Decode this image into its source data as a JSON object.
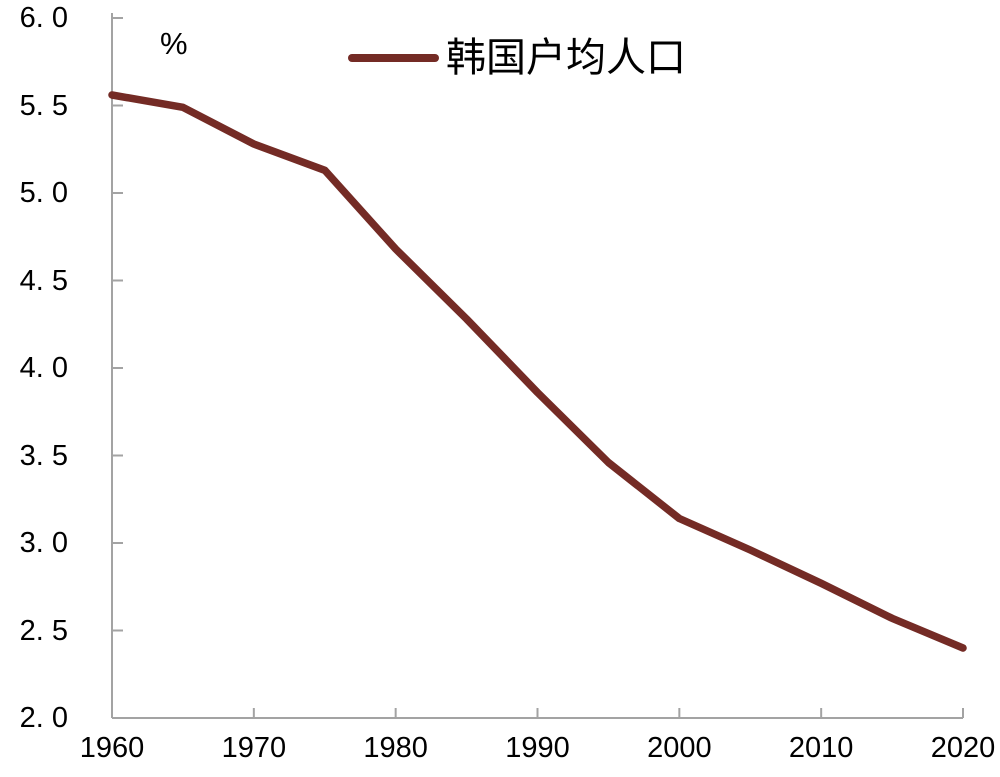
{
  "chart": {
    "unit_label": "%",
    "legend_label": "韩国户均人口",
    "colors": {
      "line": "#742B25",
      "axis": "#A3A3A3",
      "text": "#000000",
      "background": "#FFFFFF"
    },
    "y_axis": {
      "tick_labels": [
        "6. 0",
        "5. 5",
        "5. 0",
        "4. 5",
        "4. 0",
        "3. 5",
        "3. 0",
        "2. 5",
        "2. 0"
      ],
      "tick_values": [
        6.0,
        5.5,
        5.0,
        4.5,
        4.0,
        3.5,
        3.0,
        2.5,
        2.0
      ]
    },
    "x_axis": {
      "tick_labels": [
        "1960",
        "1970",
        "1980",
        "1990",
        "2000",
        "2010",
        "2020"
      ],
      "tick_values": [
        1960,
        1970,
        1980,
        1990,
        2000,
        2010,
        2020
      ],
      "ticked_marks": [
        1970,
        1980,
        1990,
        2000,
        2010,
        2020
      ]
    }
  },
  "chart_data": {
    "type": "line",
    "title": "",
    "xlabel": "",
    "ylabel": "%",
    "xlim": [
      1960,
      2020
    ],
    "ylim": [
      2.0,
      6.0
    ],
    "grid": false,
    "legend_position": "top-center",
    "x": [
      1960,
      1965,
      1970,
      1975,
      1980,
      1985,
      1990,
      1995,
      2000,
      2005,
      2010,
      2015,
      2020
    ],
    "series": [
      {
        "name": "韩国户均人口",
        "color": "#742B25",
        "values": [
          5.56,
          5.49,
          5.28,
          5.13,
          4.68,
          4.28,
          3.86,
          3.46,
          3.14,
          2.96,
          2.77,
          2.57,
          2.4
        ]
      }
    ]
  }
}
